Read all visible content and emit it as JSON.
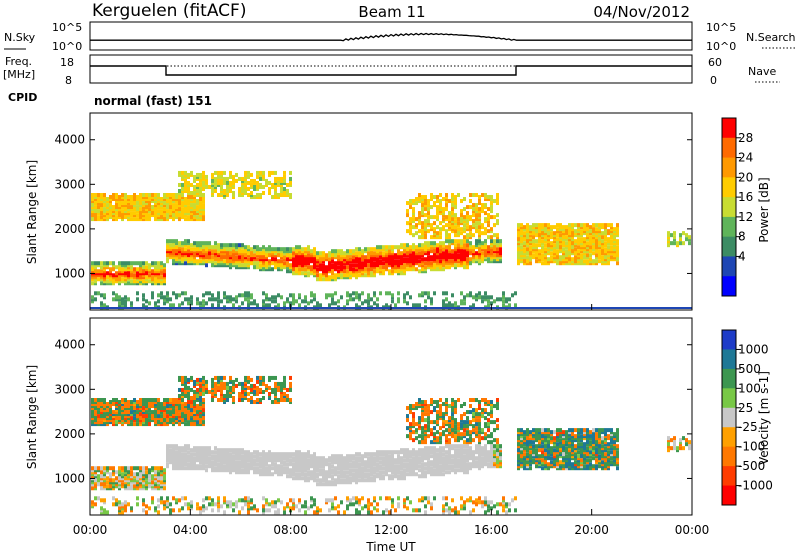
{
  "header": {
    "station": "Kerguelen (fitACF)",
    "beam": "Beam 11",
    "date": "04/Nov/2012"
  },
  "noise_panel": {
    "left_label": "N.Sky",
    "right_label": "N.Search",
    "left_ticks": [
      "10^5",
      "10^0"
    ],
    "right_ticks": [
      "10^5",
      "10^0"
    ]
  },
  "freq_panel": {
    "left_label_1": "Freq.",
    "left_label_2": "[MHz]",
    "right_label": "Nave",
    "left_ticks": [
      "18",
      "8"
    ],
    "right_ticks": [
      "60",
      "0"
    ]
  },
  "cpid": {
    "label": "CPID",
    "value": "normal (fast) 151"
  },
  "x_axis": {
    "label": "Time UT",
    "ticks": [
      "00:00",
      "04:00",
      "08:00",
      "12:00",
      "16:00",
      "20:00",
      "00:00"
    ]
  },
  "chart_data": [
    {
      "type": "heatmap",
      "name": "power",
      "ylabel": "Slant Range [km]",
      "x_range_hours": [
        0,
        24
      ],
      "ylim": [
        180,
        4600
      ],
      "yticks": [
        "1000",
        "2000",
        "3000",
        "4000"
      ],
      "colorbar": {
        "label": "Power [dB]",
        "ticks": [
          "28",
          "24",
          "20",
          "16",
          "12",
          "8",
          "4"
        ],
        "colors": [
          "#ff0000",
          "#ff6a00",
          "#ff9900",
          "#ffcc00",
          "#c8dc32",
          "#5fb45a",
          "#3c8c64",
          "#1e46b4",
          "#0000ff"
        ]
      }
    },
    {
      "type": "heatmap",
      "name": "velocity",
      "ylabel": "Slant Range [km]",
      "x_range_hours": [
        0,
        24
      ],
      "ylim": [
        180,
        4600
      ],
      "yticks": [
        "1000",
        "2000",
        "3000",
        "4000"
      ],
      "colorbar": {
        "label": "Velocity [m s-1]",
        "ticks": [
          "1000",
          "500",
          "100",
          "25",
          "-25",
          "-100",
          "-500",
          "-1000"
        ],
        "colors": [
          "#1e3cc8",
          "#1e7896",
          "#3c9650",
          "#78c846",
          "#c8c8c8",
          "#ffa000",
          "#ff7800",
          "#ff3c00",
          "#ff0000"
        ]
      }
    }
  ]
}
